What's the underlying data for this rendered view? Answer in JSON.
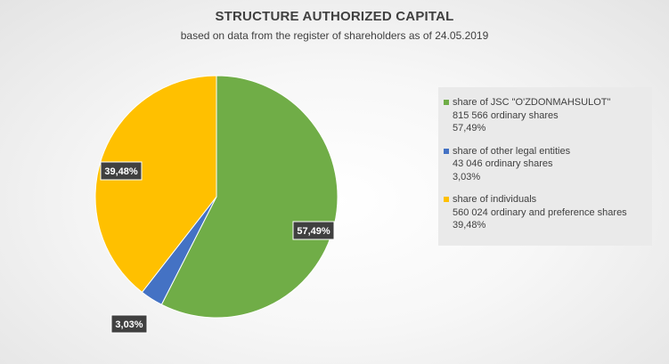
{
  "colors": {
    "green": "#70ad47",
    "blue": "#4472c4",
    "yellow": "#ffc000",
    "label_bg": "#404040",
    "label_text": "#ffffff"
  },
  "chart_data": {
    "type": "pie",
    "title": "STRUCTURE AUTHORIZED CAPITAL",
    "subtitle": "based on data from the register of shareholders as of 24.05.2019",
    "slices": [
      {
        "name": "share of JSC \"O'ZDONMAHSULOT\"",
        "shares_text": "815 566 ordinary shares",
        "percent": 57.49,
        "percent_label": "57,49%",
        "legend_percent": "57,49%",
        "color": "#70ad47"
      },
      {
        "name": "share of other legal entities",
        "shares_text": "43 046 ordinary shares",
        "percent": 3.03,
        "percent_label": "3,03%",
        "legend_percent": "3,03%",
        "color": "#4472c4"
      },
      {
        "name": "share of individuals",
        "shares_text": "560 024 ordinary and preference shares",
        "percent": 39.48,
        "percent_label": "39,48%",
        "legend_percent": "39,48%",
        "color": "#ffc000"
      }
    ],
    "legend_position": "right"
  }
}
